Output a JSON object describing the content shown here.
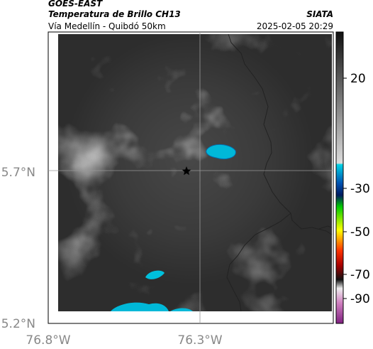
{
  "header": {
    "satellite": "GOES-EAST",
    "product": "Temperatura de Brillo CH13",
    "source": "SIATA",
    "region": "Vía Medellín - Quibdó 50km",
    "timestamp": "2025-02-05 20:29"
  },
  "map": {
    "lat_labels": [
      "5.7°N",
      "5.2°N"
    ],
    "lon_labels": [
      "76.8°W",
      "76.3°W"
    ]
  },
  "colorbar": {
    "labels": [
      "20",
      "-30",
      "-50",
      "-70",
      "-90"
    ]
  }
}
